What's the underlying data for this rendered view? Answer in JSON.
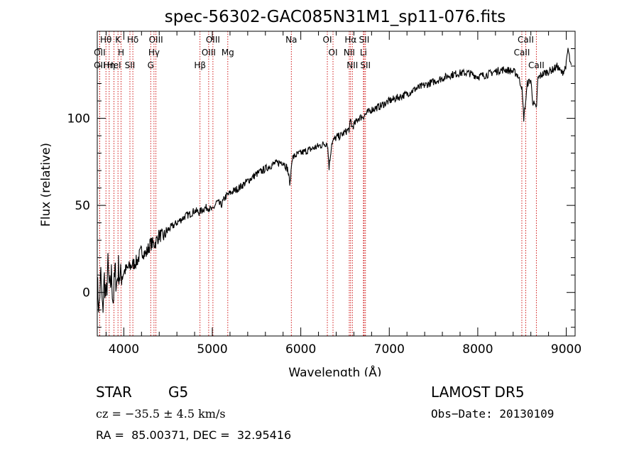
{
  "chart_data": {
    "type": "line",
    "title": "spec-56302-GAC085N31M1_sp11-076.fits",
    "xlabel": "Wavelength (Å)",
    "ylabel": "Flux (relative)",
    "xlim": [
      3700,
      9100
    ],
    "ylim": [
      -25,
      150
    ],
    "xticks": [
      4000,
      5000,
      6000,
      7000,
      8000,
      9000
    ],
    "yticks": [
      0,
      50,
      100
    ],
    "grid": false,
    "line_color": "#000000",
    "marker_color": "#cc0000",
    "series": [
      {
        "x": [
          3700,
          3720,
          3740,
          3760,
          3780,
          3800,
          3820,
          3840,
          3860,
          3880,
          3900,
          3920,
          3940,
          3960,
          3980,
          4000,
          4050,
          4100,
          4150,
          4200,
          4250,
          4300,
          4350,
          4400,
          4450,
          4500,
          4550,
          4600,
          4650,
          4700,
          4750,
          4800,
          4850,
          4900,
          4950,
          5000,
          5050,
          5100,
          5150,
          5200,
          5300,
          5400,
          5500,
          5600,
          5700,
          5800,
          5850,
          5880,
          5900,
          5950,
          6000,
          6100,
          6200,
          6250,
          6300,
          6320,
          6350,
          6400,
          6450,
          6500,
          6550,
          6563,
          6580,
          6600,
          6650,
          6700,
          6750,
          6800,
          6900,
          7000,
          7100,
          7200,
          7300,
          7400,
          7500,
          7600,
          7700,
          7800,
          7900,
          8000,
          8100,
          8200,
          8300,
          8400,
          8450,
          8498,
          8520,
          8542,
          8560,
          8600,
          8620,
          8662,
          8680,
          8700,
          8750,
          8800,
          8850,
          8900,
          8920,
          8950,
          8980,
          9000,
          9020,
          9050
        ],
        "y": [
          5,
          -10,
          10,
          -12,
          8,
          -5,
          15,
          0,
          10,
          -5,
          12,
          5,
          14,
          8,
          11,
          12,
          14,
          16,
          18,
          24,
          22,
          28,
          28,
          33,
          32,
          36,
          38,
          40,
          42,
          44,
          45,
          47,
          46,
          48,
          49,
          47,
          52,
          50,
          55,
          57,
          60,
          64,
          68,
          71,
          74,
          75,
          71,
          62,
          77,
          79,
          80,
          82,
          84,
          85,
          86,
          72,
          86,
          89,
          90,
          92,
          94,
          99,
          95,
          96,
          100,
          101,
          103,
          105,
          107,
          110,
          112,
          114,
          117,
          119,
          121,
          123,
          125,
          126,
          126,
          124,
          125,
          127,
          128,
          127,
          125,
          118,
          100,
          110,
          120,
          122,
          110,
          105,
          123,
          124,
          126,
          127,
          128,
          130,
          128,
          126,
          128,
          131,
          140,
          130
        ]
      }
    ],
    "lines": [
      {
        "label": "Hθ",
        "x": 3798
      },
      {
        "label": "OII",
        "x": 3727
      },
      {
        "label": "OII",
        "x": 3727
      },
      {
        "label": "Hη",
        "x": 3835
      },
      {
        "label": "K",
        "x": 3934
      },
      {
        "label": "HeI",
        "x": 3889
      },
      {
        "label": "H",
        "x": 3969
      },
      {
        "label": "Hδ",
        "x": 4102
      },
      {
        "label": "SII",
        "x": 4069
      },
      {
        "label": "OIII",
        "x": 4363
      },
      {
        "label": "Hγ",
        "x": 4341
      },
      {
        "label": "G",
        "x": 4304
      },
      {
        "label": "OIII",
        "x": 5007
      },
      {
        "label": "OIII",
        "x": 4959
      },
      {
        "label": "Hβ",
        "x": 4861
      },
      {
        "label": "Mg",
        "x": 5175
      },
      {
        "label": "Na",
        "x": 5893
      },
      {
        "label": "OI",
        "x": 6300
      },
      {
        "label": "OI",
        "x": 6364
      },
      {
        "label": "Hα",
        "x": 6563
      },
      {
        "label": "SII",
        "x": 6716
      },
      {
        "label": "NII",
        "x": 6548
      },
      {
        "label": "Li",
        "x": 6708
      },
      {
        "label": "NII",
        "x": 6583
      },
      {
        "label": "SII",
        "x": 6731
      },
      {
        "label": "CaII",
        "x": 8542
      },
      {
        "label": "CaII",
        "x": 8498
      },
      {
        "label": "CaII",
        "x": 8662
      }
    ]
  },
  "info": {
    "class": "STAR",
    "subclass": "G5",
    "survey": "LAMOST DR5",
    "cz": "cz = −35.5 ± 4.5 km/s",
    "obs_date": "Obs−Date: 20130109",
    "radec": "RA =  85.00371, DEC =  32.95416"
  }
}
